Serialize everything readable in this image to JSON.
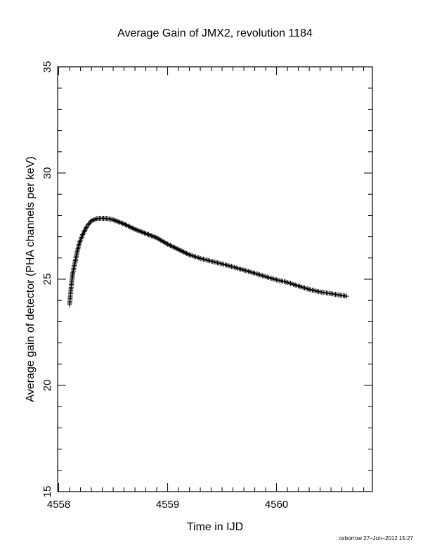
{
  "chart_data": {
    "type": "scatter",
    "title": "Average Gain of JMX2, revolution 1184",
    "xlabel": "Time in IJD",
    "ylabel": "Average gain of detector (PHA channels per keV)",
    "xlim": [
      4557.99,
      4560.88
    ],
    "ylim": [
      15,
      35
    ],
    "xticks": [
      4558,
      4559,
      4560
    ],
    "xtick_labels": [
      "4558",
      "4559",
      "4560"
    ],
    "yticks": [
      15,
      20,
      25,
      30,
      35
    ],
    "ytick_labels": [
      "15",
      "20",
      "25",
      "30",
      "35"
    ],
    "x_minor_step": 0.1,
    "y_minor_step": 1,
    "marker": "plus",
    "grid": false,
    "series": [
      {
        "x": [
          4558.1,
          4558.11,
          4558.12,
          4558.13,
          4558.15,
          4558.17,
          4558.19,
          4558.22,
          4558.26,
          4558.3,
          4558.35,
          4558.4,
          4558.45,
          4558.5,
          4558.6,
          4558.7,
          4558.8,
          4558.9,
          4559.0,
          4559.1,
          4559.2,
          4559.3,
          4559.4,
          4559.5,
          4559.6,
          4559.7,
          4559.8,
          4559.9,
          4560.0,
          4560.1,
          4560.2,
          4560.3,
          4560.4,
          4560.5,
          4560.64
        ],
        "y": [
          23.8,
          24.4,
          24.9,
          25.3,
          25.8,
          26.3,
          26.7,
          27.1,
          27.5,
          27.75,
          27.85,
          27.87,
          27.85,
          27.8,
          27.6,
          27.35,
          27.15,
          26.95,
          26.65,
          26.4,
          26.15,
          25.98,
          25.85,
          25.72,
          25.58,
          25.43,
          25.28,
          25.12,
          24.97,
          24.85,
          24.68,
          24.52,
          24.4,
          24.32,
          24.2
        ]
      }
    ]
  },
  "footer": {
    "text": "oxborrow 27–Jun–2012 15:27"
  }
}
